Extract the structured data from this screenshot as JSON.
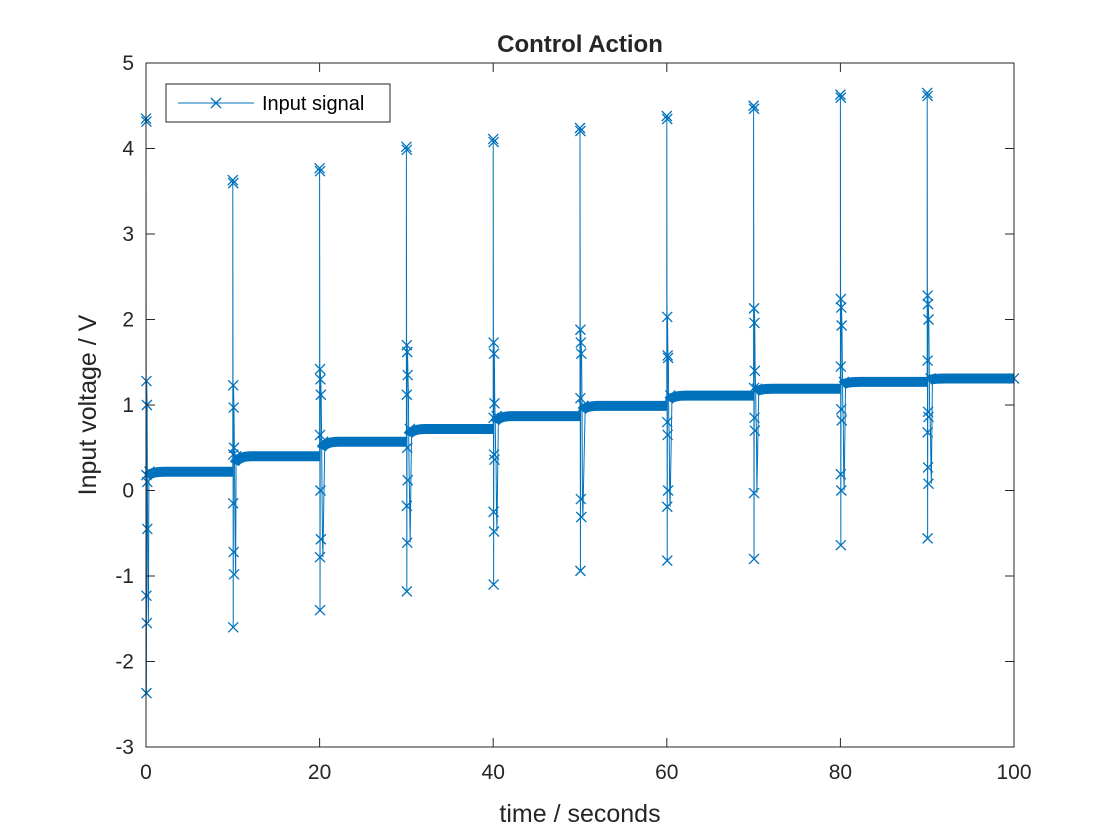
{
  "chart_data": {
    "type": "line",
    "title": "Control Action",
    "xlabel": "time / seconds",
    "ylabel": "Input voltage / V",
    "xlim": [
      0,
      100
    ],
    "ylim": [
      -3,
      5
    ],
    "xticks": [
      "0",
      "20",
      "40",
      "60",
      "80",
      "100"
    ],
    "yticks": [
      "-3",
      "-2",
      "-1",
      "0",
      "1",
      "2",
      "3",
      "4",
      "5"
    ],
    "grid": false,
    "legend_position": "top-left",
    "marker": "x",
    "color": "#0072BD",
    "series": [
      {
        "name": "Input signal",
        "step_times": [
          0,
          10,
          20,
          30,
          40,
          50,
          60,
          70,
          80,
          90
        ],
        "steady_levels": [
          0.22,
          0.4,
          0.57,
          0.72,
          0.87,
          0.99,
          1.11,
          1.19,
          1.27,
          1.31
        ],
        "spike_extremes": [
          {
            "t": 0,
            "max": 4.35,
            "min": -2.37,
            "extra": [
              1.28,
              1.0,
              -0.45,
              -1.23,
              -1.55,
              0.1,
              0.18
            ]
          },
          {
            "t": 10,
            "max": 3.63,
            "min": -1.6,
            "extra": [
              1.23,
              0.97,
              0.5,
              -0.15,
              -0.72,
              -0.98,
              0.42
            ]
          },
          {
            "t": 20,
            "max": 3.77,
            "min": -1.4,
            "extra": [
              1.42,
              1.3,
              1.12,
              0.65,
              0.0,
              -0.57,
              -0.78
            ]
          },
          {
            "t": 30,
            "max": 4.02,
            "min": -1.18,
            "extra": [
              1.7,
              1.62,
              1.35,
              1.12,
              0.5,
              0.12,
              -0.18,
              -0.61
            ]
          },
          {
            "t": 40,
            "max": 4.11,
            "min": -1.1,
            "extra": [
              1.73,
              1.6,
              1.02,
              0.85,
              0.42,
              0.36,
              -0.25,
              -0.48
            ]
          },
          {
            "t": 50,
            "max": 4.24,
            "min": -0.94,
            "extra": [
              1.88,
              1.73,
              1.6,
              1.08,
              -0.1,
              -0.31
            ]
          },
          {
            "t": 60,
            "max": 4.38,
            "min": -0.82,
            "extra": [
              2.03,
              1.58,
              1.55,
              0.8,
              0.65,
              0.0,
              -0.19
            ]
          },
          {
            "t": 70,
            "max": 4.5,
            "min": -0.8,
            "extra": [
              2.13,
              1.96,
              1.4,
              1.2,
              0.85,
              0.7,
              -0.03
            ]
          },
          {
            "t": 80,
            "max": 4.63,
            "min": -0.64,
            "extra": [
              2.24,
              2.14,
              1.93,
              1.45,
              0.95,
              0.82,
              0.19,
              0.0
            ]
          },
          {
            "t": 90,
            "max": 4.65,
            "min": -0.56,
            "extra": [
              2.28,
              2.18,
              2.0,
              1.52,
              0.92,
              0.86,
              0.68,
              0.27,
              0.08
            ]
          }
        ],
        "end_value": 1.31,
        "end_time": 100
      }
    ]
  }
}
